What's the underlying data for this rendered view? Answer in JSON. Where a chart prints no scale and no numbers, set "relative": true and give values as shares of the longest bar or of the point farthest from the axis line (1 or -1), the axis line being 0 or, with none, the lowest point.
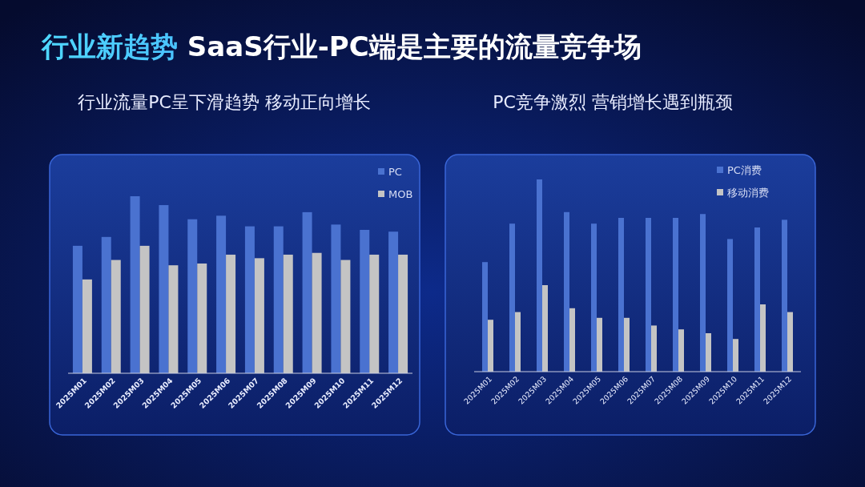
{
  "chart_data": [
    {
      "type": "other",
      "title": "行业新趋势 SaaS行业-PC端是主要的流量竞争场"
    },
    {
      "type": "bar",
      "title": "行业流量PC呈下滑趋势 移动正向增长",
      "relative": true,
      "legend": "top right",
      "categories": [
        "2025M01",
        "2025M02",
        "2025M03",
        "2025M04",
        "2025M05",
        "2025M06",
        "2025M07",
        "2025M08",
        "2025M09",
        "2025M10",
        "2025M11",
        "2025M12"
      ],
      "series": [
        {
          "name": "PC",
          "color": "#4a72d0",
          "values": [
            0.72,
            0.77,
            1,
            0.95,
            0.87,
            0.89,
            0.83,
            0.83,
            0.91,
            0.84,
            0.81,
            0.8
          ]
        },
        {
          "name": "MOB",
          "color": "#c4c4c4",
          "values": [
            0.53,
            0.64,
            0.72,
            0.61,
            0.62,
            0.67,
            0.65,
            0.67,
            0.68,
            0.64,
            0.67,
            0.67
          ]
        }
      ]
    },
    {
      "type": "bar",
      "title": "PC竞争激烈 营销增长遇到瓶颈",
      "relative": true,
      "legend": "top right",
      "categories": [
        "2025M01",
        "2025M02",
        "2025M03",
        "2025M04",
        "2025M05",
        "2025M06",
        "2025M07",
        "2025M08",
        "2025M09",
        "2025M10",
        "2025M11",
        "2025M12"
      ],
      "series": [
        {
          "name": "PC消费",
          "color": "#4a72d0",
          "values": [
            0.57,
            0.77,
            1,
            0.83,
            0.77,
            0.8,
            0.8,
            0.8,
            0.82,
            0.69,
            0.75,
            0.79
          ]
        },
        {
          "name": "移动消费",
          "color": "#c4c4c4",
          "values": [
            0.27,
            0.31,
            0.45,
            0.33,
            0.28,
            0.28,
            0.24,
            0.22,
            0.2,
            0.17,
            0.35,
            0.31
          ]
        }
      ]
    }
  ]
}
